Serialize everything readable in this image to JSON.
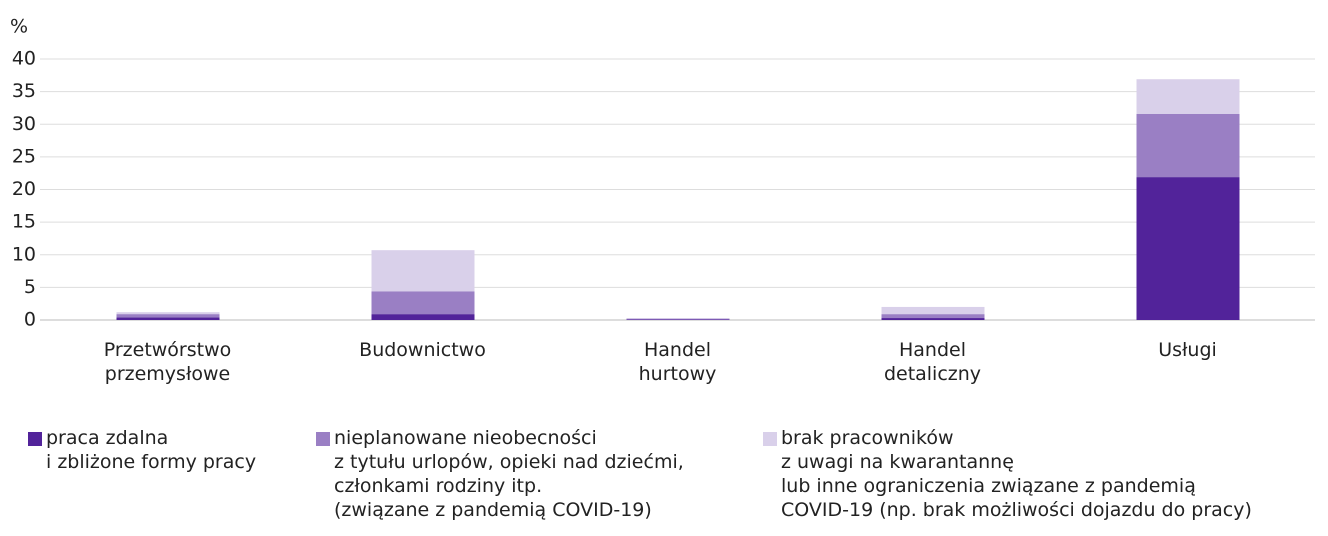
{
  "chart_data": {
    "type": "bar",
    "stacked": true,
    "y_label": "%",
    "categories": [
      "Przetwórstwo\nprzemysłowe",
      "Budownictwo",
      "Handel\nhurtowy",
      "Handel\ndetaliczny",
      "Usługi"
    ],
    "series": [
      {
        "name": "praca zdalna\ni zbliżone formy pracy",
        "color": "#52239a",
        "values": [
          0.4,
          0.9,
          0.1,
          0.3,
          21.9
        ]
      },
      {
        "name": "nieplanowane nieobecności\nz tytułu urlopów, opieki nad dziećmi,\nczłonkami rodziny itp.\n(związane z pandemią COVID-19)",
        "color": "#9a7fc4",
        "values": [
          0.5,
          3.5,
          0.1,
          0.6,
          9.7
        ]
      },
      {
        "name": "brak pracowników\nz uwagi na kwarantannę\nlub inne ograniczenia związane z pandemią\nCOVID-19 (np. brak możliwości dojazdu do pracy)",
        "color": "#d9d0ea",
        "values": [
          0.3,
          6.3,
          0.1,
          1.1,
          5.3
        ]
      }
    ],
    "ylim": [
      0,
      40
    ],
    "yticks": [
      0,
      5,
      10,
      15,
      20,
      25,
      30,
      35,
      40
    ],
    "grid": true
  }
}
